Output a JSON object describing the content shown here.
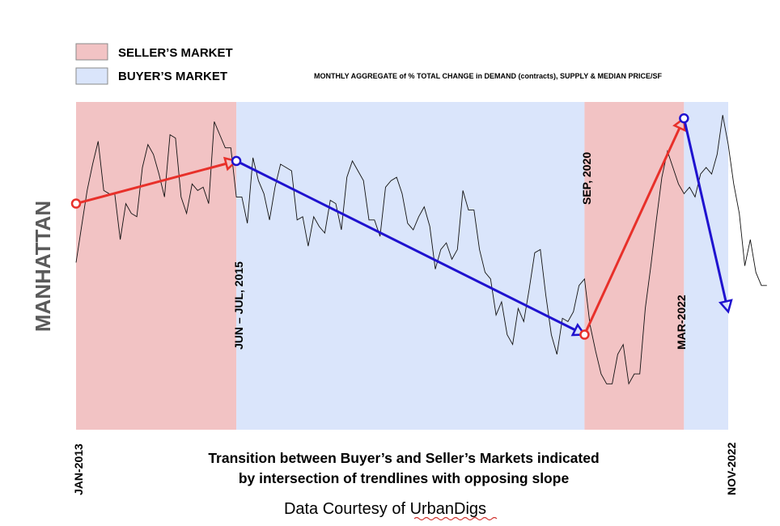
{
  "chart_data": {
    "type": "line",
    "title": "MONTHLY AGGREGATE of % TOTAL CHANGE in DEMAND (contracts), SUPPLY & MEDIAN PRICE/SF",
    "region_label": "MANHATTAN",
    "caption_lines": [
      "Transition between Buyer’s and Seller’s Markets indicated",
      "by intersection of trendlines with opposing slope"
    ],
    "credit": "Data Courtesy of UrbanDigs",
    "legend": [
      {
        "label": "SELLER’S MARKET",
        "color": "#f2c3c4"
      },
      {
        "label": "BUYER’S MARKET",
        "color": "#dae5fb"
      }
    ],
    "x_labels": {
      "start": "JAN-2013",
      "end": "NOV-2022"
    },
    "regimes": [
      {
        "market": "seller",
        "from": "2013-01",
        "to": "2015-06",
        "color": "#f2c3c4"
      },
      {
        "market": "buyer",
        "from": "2015-06",
        "to": "2020-09",
        "color": "#dae5fb"
      },
      {
        "market": "seller",
        "from": "2020-09",
        "to": "2022-03",
        "color": "#f2c3c4"
      },
      {
        "market": "buyer",
        "from": "2022-03",
        "to": "2022-11",
        "color": "#dae5fb"
      }
    ],
    "transition_labels": [
      {
        "text": "JUN – JUL, 2015",
        "month": "2015-06"
      },
      {
        "text": "SEP, 2020",
        "month": "2020-09"
      },
      {
        "text": "MAR-2022",
        "month": "2022-03"
      }
    ],
    "trendlines": [
      {
        "market": "seller",
        "color": "#e8302a",
        "from": {
          "month": "2013-01",
          "value": 0.69
        },
        "to": {
          "month": "2015-06",
          "value": 0.82
        }
      },
      {
        "market": "buyer",
        "color": "#1f12cf",
        "from": {
          "month": "2015-06",
          "value": 0.82
        },
        "to": {
          "month": "2020-09",
          "value": 0.29
        }
      },
      {
        "market": "seller",
        "color": "#e8302a",
        "from": {
          "month": "2020-09",
          "value": 0.29
        },
        "to": {
          "month": "2022-03",
          "value": 0.95
        }
      },
      {
        "market": "buyer",
        "color": "#1f12cf",
        "from": {
          "month": "2022-03",
          "value": 0.95
        },
        "to": {
          "month": "2022-11",
          "value": 0.36
        }
      }
    ],
    "series": [
      {
        "values": [
          0.51,
          0.62,
          0.73,
          0.81,
          0.88,
          0.73,
          0.72,
          0.72,
          0.58,
          0.69,
          0.66,
          0.65,
          0.8,
          0.87,
          0.84,
          0.78,
          0.71,
          0.9,
          0.89,
          0.71,
          0.66,
          0.75,
          0.73,
          0.74,
          0.69,
          0.94,
          0.9,
          0.86,
          0.86,
          0.71,
          0.71,
          0.63,
          0.83,
          0.76,
          0.72,
          0.64,
          0.74,
          0.81,
          0.8,
          0.79,
          0.64,
          0.65,
          0.56,
          0.65,
          0.62,
          0.6,
          0.7,
          0.69,
          0.61,
          0.77,
          0.82,
          0.79,
          0.76,
          0.64,
          0.64,
          0.59,
          0.74,
          0.76,
          0.77,
          0.72,
          0.63,
          0.61,
          0.65,
          0.68,
          0.62,
          0.49,
          0.55,
          0.57,
          0.52,
          0.55,
          0.73,
          0.67,
          0.67,
          0.55,
          0.48,
          0.46,
          0.35,
          0.39,
          0.29,
          0.26,
          0.37,
          0.33,
          0.43,
          0.54,
          0.55,
          0.41,
          0.29,
          0.23,
          0.34,
          0.33,
          0.36,
          0.44,
          0.46,
          0.32,
          0.24,
          0.17,
          0.14,
          0.14,
          0.23,
          0.26,
          0.14,
          0.17,
          0.17,
          0.37,
          0.5,
          0.64,
          0.77,
          0.85,
          0.8,
          0.75,
          0.72,
          0.74,
          0.71,
          0.78,
          0.8,
          0.78,
          0.84,
          0.96,
          0.87,
          0.75,
          0.66,
          0.5,
          0.58,
          0.48,
          0.44,
          0.44
        ]
      }
    ]
  }
}
